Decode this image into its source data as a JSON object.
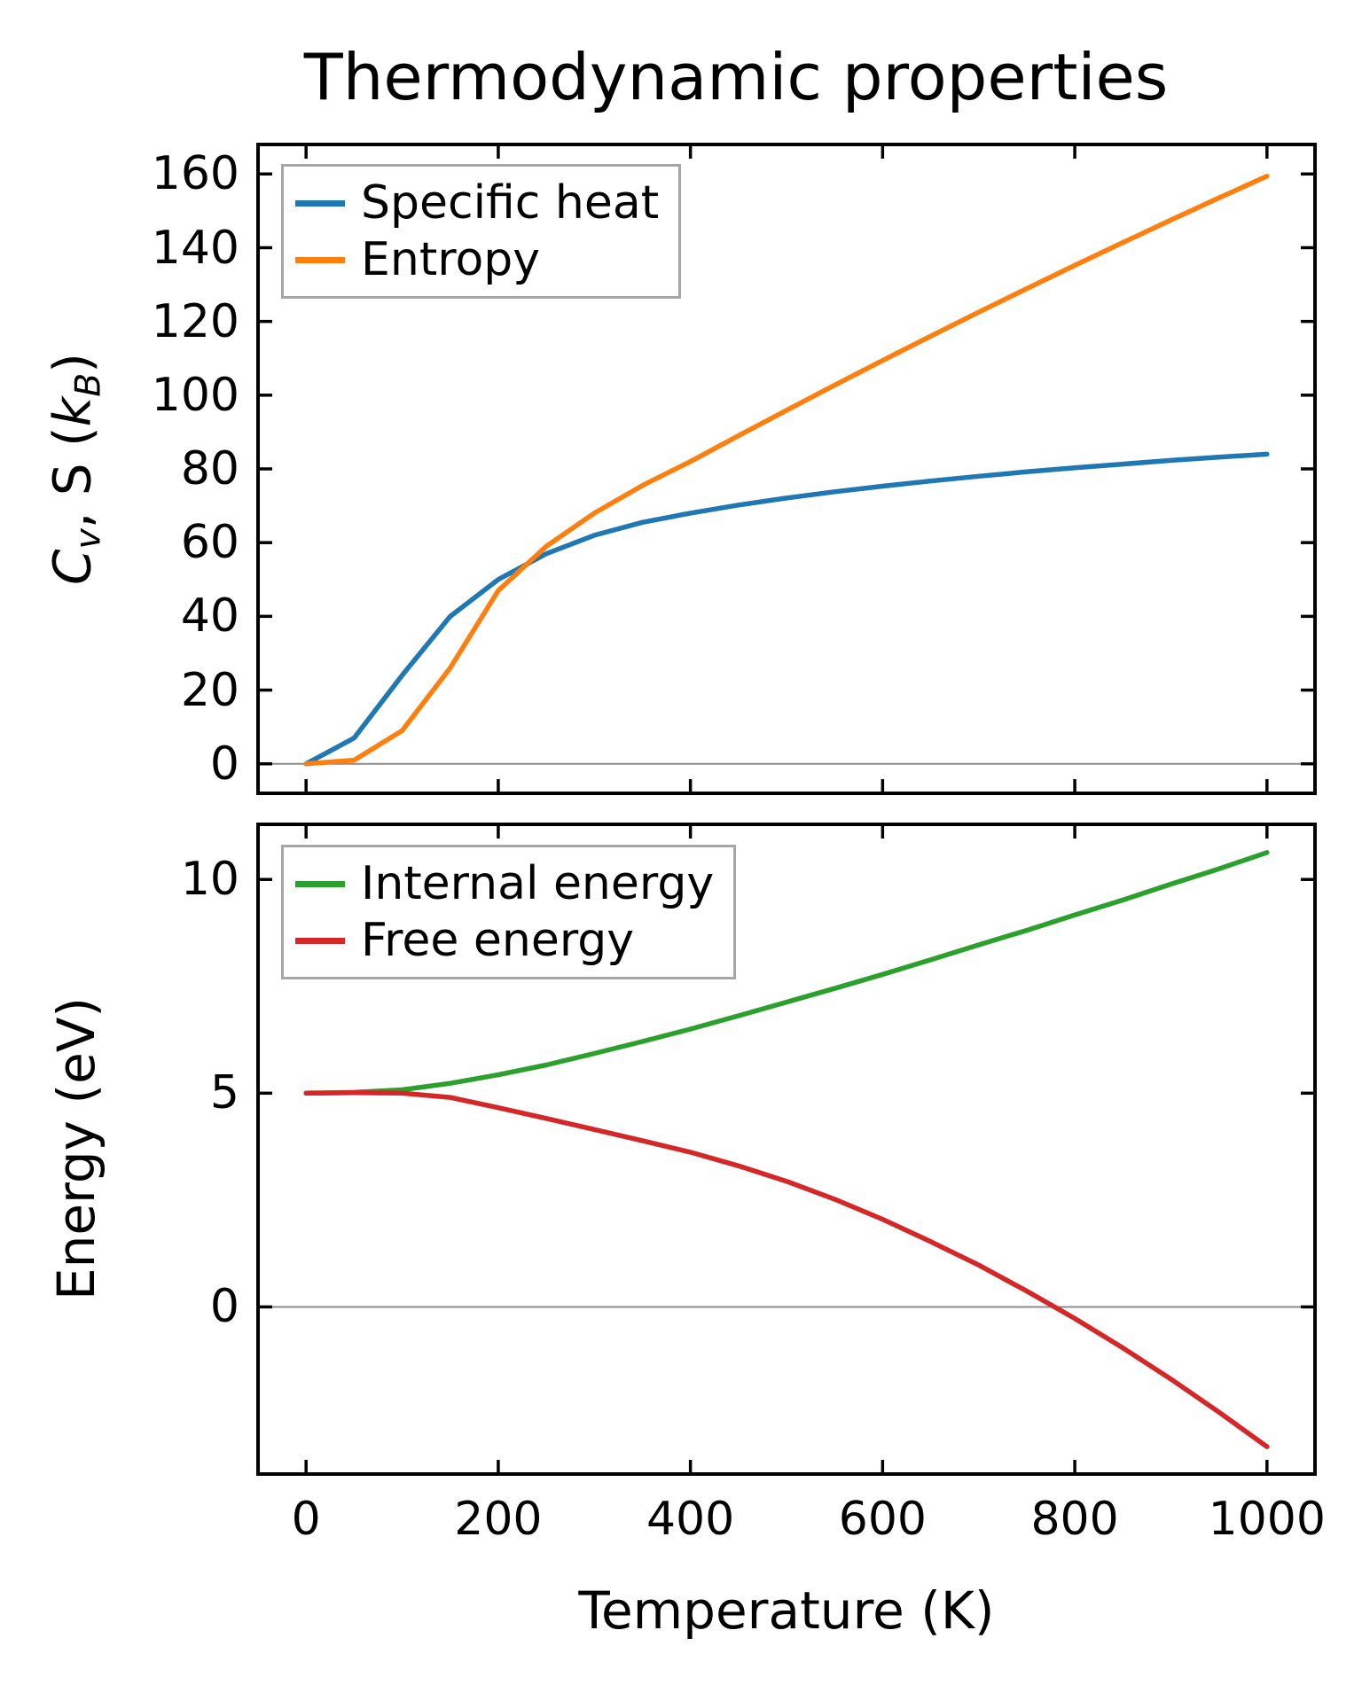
{
  "title": "Thermodynamic properties",
  "chart_data": [
    {
      "type": "line",
      "panel": "top",
      "ylabel": "Cv, S (kB)",
      "ylabel_segments": [
        {
          "text": "C",
          "italic": true
        },
        {
          "text": "v",
          "italic": true,
          "sub": true
        },
        {
          "text": ", S ("
        },
        {
          "text": "k",
          "italic": true
        },
        {
          "text": "B",
          "italic": true,
          "sub": true
        },
        {
          "text": ")"
        }
      ],
      "xlabel": "",
      "x": [
        0,
        50,
        100,
        150,
        200,
        250,
        300,
        350,
        400,
        450,
        500,
        550,
        600,
        650,
        700,
        750,
        800,
        850,
        900,
        950,
        1000
      ],
      "series": [
        {
          "name": "Specific heat",
          "color": "#1f77b4",
          "values": [
            0,
            7,
            24,
            40,
            50,
            57,
            62,
            65.5,
            68,
            70.2,
            72.1,
            73.8,
            75.3,
            76.7,
            78,
            79.2,
            80.3,
            81.3,
            82.3,
            83.2,
            84
          ]
        },
        {
          "name": "Entropy",
          "color": "#ff7f0e",
          "values": [
            0,
            1,
            9,
            26,
            47,
            59,
            68,
            75.5,
            82,
            89,
            95.9,
            102.7,
            109.4,
            116,
            122.5,
            128.9,
            135.2,
            141.4,
            147.5,
            153.5,
            159.4
          ]
        }
      ],
      "xlim": [
        -50,
        1050
      ],
      "ylim": [
        -8,
        168
      ],
      "xticks": [
        0,
        200,
        400,
        600,
        800,
        1000
      ],
      "show_xtick_labels": false,
      "yticks": [
        0,
        20,
        40,
        60,
        80,
        100,
        120,
        140,
        160
      ],
      "grid": false,
      "zero_line": true,
      "zero_line_color": "#8c8c8c",
      "legend_position": "upper-left",
      "legend_border_color": "#a6a6a6"
    },
    {
      "type": "line",
      "panel": "bottom",
      "ylabel": "Energy (eV)",
      "xlabel": "Temperature (K)",
      "x": [
        0,
        50,
        100,
        150,
        200,
        250,
        300,
        350,
        400,
        450,
        500,
        550,
        600,
        650,
        700,
        750,
        800,
        850,
        900,
        950,
        1000
      ],
      "series": [
        {
          "name": "Internal energy",
          "color": "#2ca02c",
          "values": [
            5,
            5.02,
            5.08,
            5.23,
            5.43,
            5.66,
            5.93,
            6.21,
            6.5,
            6.81,
            7.13,
            7.45,
            7.78,
            8.12,
            8.47,
            8.81,
            9.17,
            9.52,
            9.89,
            10.25,
            10.63
          ]
        },
        {
          "name": "Free energy",
          "color": "#d62728",
          "values": [
            5,
            5.01,
            5,
            4.9,
            4.66,
            4.41,
            4.15,
            3.89,
            3.62,
            3.3,
            2.94,
            2.52,
            2.05,
            1.53,
            0.98,
            0.37,
            -0.27,
            -0.96,
            -1.69,
            -2.46,
            -3.27
          ]
        }
      ],
      "xlim": [
        -50,
        1050
      ],
      "ylim": [
        -3.91,
        11.29
      ],
      "xticks": [
        0,
        200,
        400,
        600,
        800,
        1000
      ],
      "show_xtick_labels": true,
      "yticks": [
        0,
        5,
        10
      ],
      "grid": false,
      "zero_line": true,
      "zero_line_color": "#8c8c8c",
      "legend_position": "upper-left",
      "legend_border_color": "#a6a6a6"
    }
  ]
}
